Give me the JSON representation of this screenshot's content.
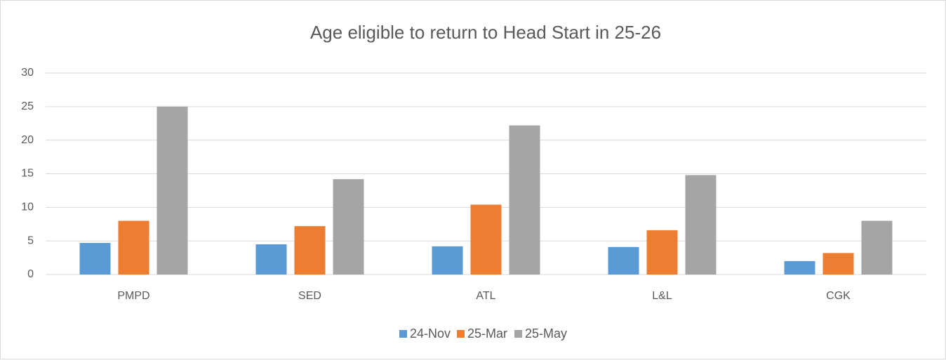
{
  "chart_data": {
    "type": "bar",
    "title": "Age eligible to return to Head Start in 25-26",
    "categories": [
      "PMPD",
      "SED",
      "ATL",
      "L&L",
      "CGK"
    ],
    "series": [
      {
        "name": "24-Nov",
        "color": "#5b9bd5",
        "values": [
          4.7,
          4.5,
          4.2,
          4.1,
          2.0
        ]
      },
      {
        "name": "25-Mar",
        "color": "#ed7d31",
        "values": [
          8.0,
          7.2,
          10.4,
          6.6,
          3.2
        ]
      },
      {
        "name": "25-May",
        "color": "#a5a5a5",
        "values": [
          25.0,
          14.2,
          22.2,
          14.8,
          8.0
        ]
      }
    ],
    "ylim": [
      0,
      30
    ],
    "yticks": [
      0,
      5,
      10,
      15,
      20,
      25,
      30
    ],
    "grid": true,
    "legend": "bottom"
  }
}
